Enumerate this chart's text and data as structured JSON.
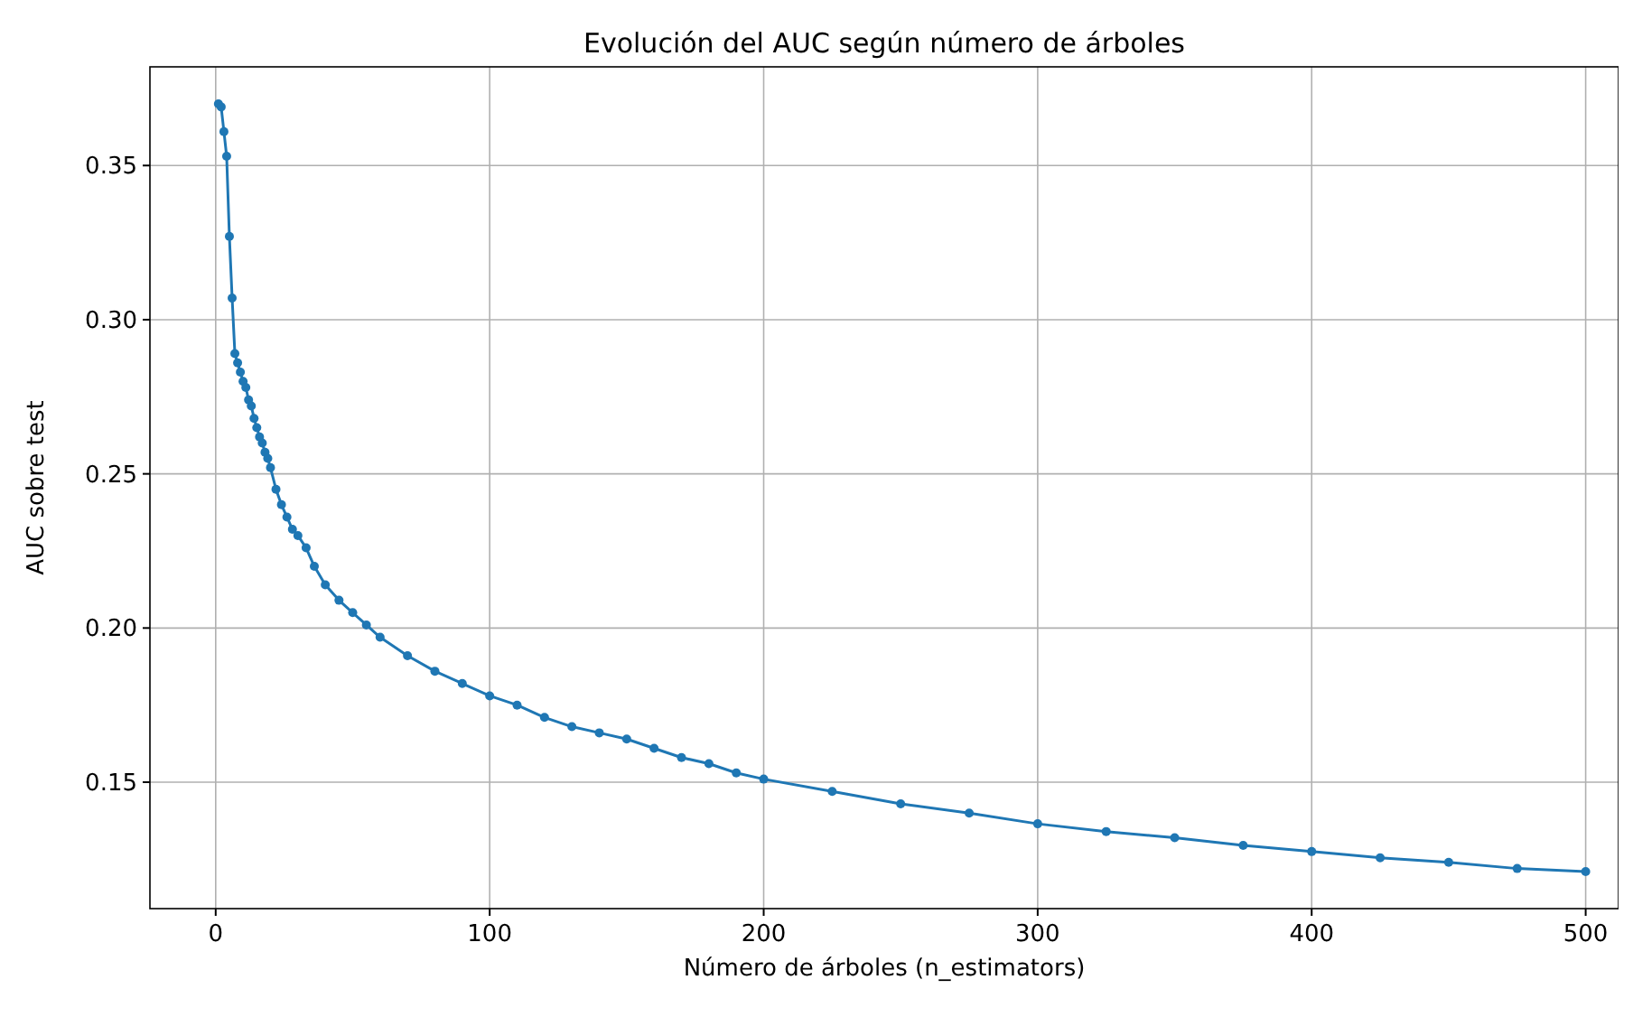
{
  "chart_data": {
    "type": "line",
    "title": "Evolución del AUC según número de árboles",
    "xlabel": "Número de árboles (n_estimators)",
    "ylabel": "AUC sobre test",
    "x": [
      1,
      2,
      3,
      4,
      5,
      6,
      7,
      8,
      9,
      10,
      11,
      12,
      13,
      14,
      15,
      16,
      17,
      18,
      19,
      20,
      22,
      24,
      26,
      28,
      30,
      33,
      36,
      40,
      45,
      50,
      55,
      60,
      70,
      80,
      90,
      100,
      110,
      120,
      130,
      140,
      150,
      160,
      170,
      180,
      190,
      200,
      225,
      250,
      275,
      300,
      325,
      350,
      375,
      400,
      425,
      450,
      475,
      500
    ],
    "series": [
      {
        "color": "#1f77b4",
        "values": [
          0.37,
          0.369,
          0.361,
          0.353,
          0.327,
          0.307,
          0.289,
          0.286,
          0.283,
          0.28,
          0.278,
          0.274,
          0.272,
          0.268,
          0.265,
          0.262,
          0.26,
          0.257,
          0.255,
          0.252,
          0.245,
          0.24,
          0.236,
          0.232,
          0.23,
          0.226,
          0.22,
          0.214,
          0.209,
          0.205,
          0.201,
          0.197,
          0.191,
          0.186,
          0.182,
          0.178,
          0.175,
          0.171,
          0.168,
          0.166,
          0.164,
          0.161,
          0.158,
          0.156,
          0.153,
          0.151,
          0.147,
          0.143,
          0.14,
          0.1365,
          0.134,
          0.132,
          0.1295,
          0.1275,
          0.1255,
          0.124,
          0.122,
          0.121
        ]
      }
    ],
    "xlim": [
      -24,
      512
    ],
    "ylim": [
      0.109,
      0.382
    ],
    "xticks": [
      0,
      100,
      200,
      300,
      400,
      500
    ],
    "yticks": [
      {
        "value": 0.15,
        "label": "0.15"
      },
      {
        "value": 0.2,
        "label": "0.20"
      },
      {
        "value": 0.25,
        "label": "0.25"
      },
      {
        "value": 0.3,
        "label": "0.30"
      },
      {
        "value": 0.35,
        "label": "0.35"
      }
    ],
    "grid": true,
    "marker": "circle",
    "line_style": "solid"
  }
}
